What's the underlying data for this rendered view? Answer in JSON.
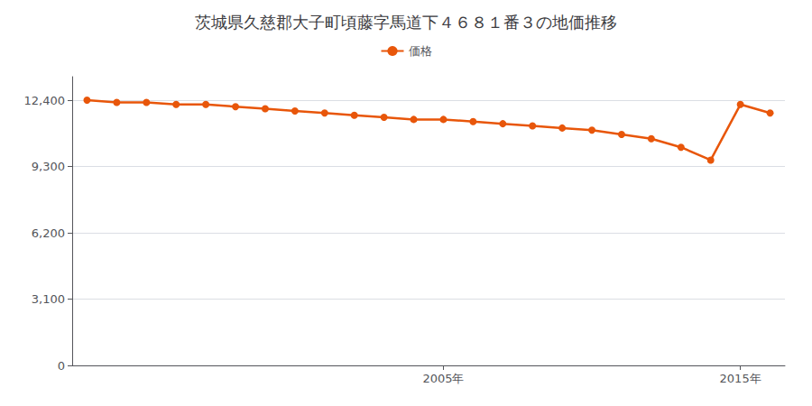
{
  "chart_data": {
    "type": "line",
    "title": "茨城県久慈郡大子町頃藤字馬道下４６８１番３の地価推移",
    "x": [
      1993,
      1994,
      1995,
      1996,
      1997,
      1998,
      1999,
      2000,
      2001,
      2002,
      2003,
      2004,
      2005,
      2006,
      2007,
      2008,
      2009,
      2010,
      2011,
      2012,
      2013,
      2014,
      2015,
      2016
    ],
    "series": [
      {
        "name": "価格",
        "color": "#e8560a",
        "marker": "circle",
        "values": [
          12400,
          12300,
          12300,
          12200,
          12200,
          12100,
          12000,
          11900,
          11800,
          11700,
          11600,
          11500,
          11500,
          11400,
          11300,
          11200,
          11100,
          11000,
          10800,
          10600,
          10200,
          9600,
          12200,
          11800
        ]
      }
    ],
    "xlim": [
      1992.5,
      2016.5
    ],
    "xticks": [
      {
        "value": 2005,
        "label": "2005年"
      },
      {
        "value": 2015,
        "label": "2015年"
      }
    ],
    "ylim": [
      0,
      13500
    ],
    "yticks": [
      0,
      {
        "value": 3100,
        "label": "3,100"
      },
      {
        "value": 6200,
        "label": "6,200"
      },
      {
        "value": 9300,
        "label": "9,300"
      },
      {
        "value": 12400,
        "label": "12,400"
      }
    ],
    "grid": true,
    "legend": "top"
  }
}
